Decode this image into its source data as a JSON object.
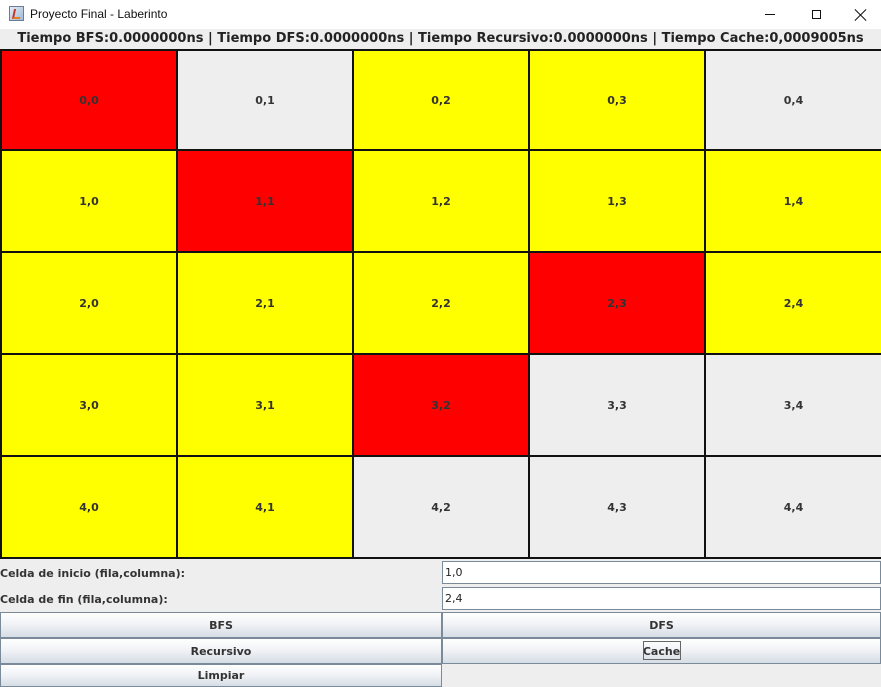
{
  "window": {
    "title": "Proyecto Final - Laberinto",
    "icon": "java-cup-icon"
  },
  "timing": {
    "bfs_label": "Tiempo BFS:",
    "bfs": "0.0000000ns",
    "dfs_label": "Tiempo DFS:",
    "dfs": "0.0000000ns",
    "rec_label": "Tiempo Recursivo:",
    "rec": "0.0000000ns",
    "cache_label": "Tiempo Cache:",
    "cache": "0,0009005ns",
    "separator": " | "
  },
  "colors": {
    "red": "#ff0000",
    "yellow": "#ffff00",
    "gray": "#eeeeee"
  },
  "grid": {
    "rows": [
      [
        {
          "label": "0,0",
          "color": "red"
        },
        {
          "label": "0,1",
          "color": "gray"
        },
        {
          "label": "0,2",
          "color": "yellow"
        },
        {
          "label": "0,3",
          "color": "yellow"
        },
        {
          "label": "0,4",
          "color": "gray"
        }
      ],
      [
        {
          "label": "1,0",
          "color": "yellow"
        },
        {
          "label": "1,1",
          "color": "red"
        },
        {
          "label": "1,2",
          "color": "yellow"
        },
        {
          "label": "1,3",
          "color": "yellow"
        },
        {
          "label": "1,4",
          "color": "yellow"
        }
      ],
      [
        {
          "label": "2,0",
          "color": "yellow"
        },
        {
          "label": "2,1",
          "color": "yellow"
        },
        {
          "label": "2,2",
          "color": "yellow"
        },
        {
          "label": "2,3",
          "color": "red"
        },
        {
          "label": "2,4",
          "color": "yellow"
        }
      ],
      [
        {
          "label": "3,0",
          "color": "yellow"
        },
        {
          "label": "3,1",
          "color": "yellow"
        },
        {
          "label": "3,2",
          "color": "red"
        },
        {
          "label": "3,3",
          "color": "gray"
        },
        {
          "label": "3,4",
          "color": "gray"
        }
      ],
      [
        {
          "label": "4,0",
          "color": "yellow"
        },
        {
          "label": "4,1",
          "color": "yellow"
        },
        {
          "label": "4,2",
          "color": "gray"
        },
        {
          "label": "4,3",
          "color": "gray"
        },
        {
          "label": "4,4",
          "color": "gray"
        }
      ]
    ]
  },
  "form": {
    "start_label": "Celda de inicio (fila,columna):",
    "start_value": "1,0",
    "end_label": "Celda de fin (fila,columna):",
    "end_value": "2,4"
  },
  "buttons": {
    "bfs": "BFS",
    "dfs": "DFS",
    "recursive": "Recursivo",
    "cache": "Cache",
    "clear": "Limpiar"
  }
}
